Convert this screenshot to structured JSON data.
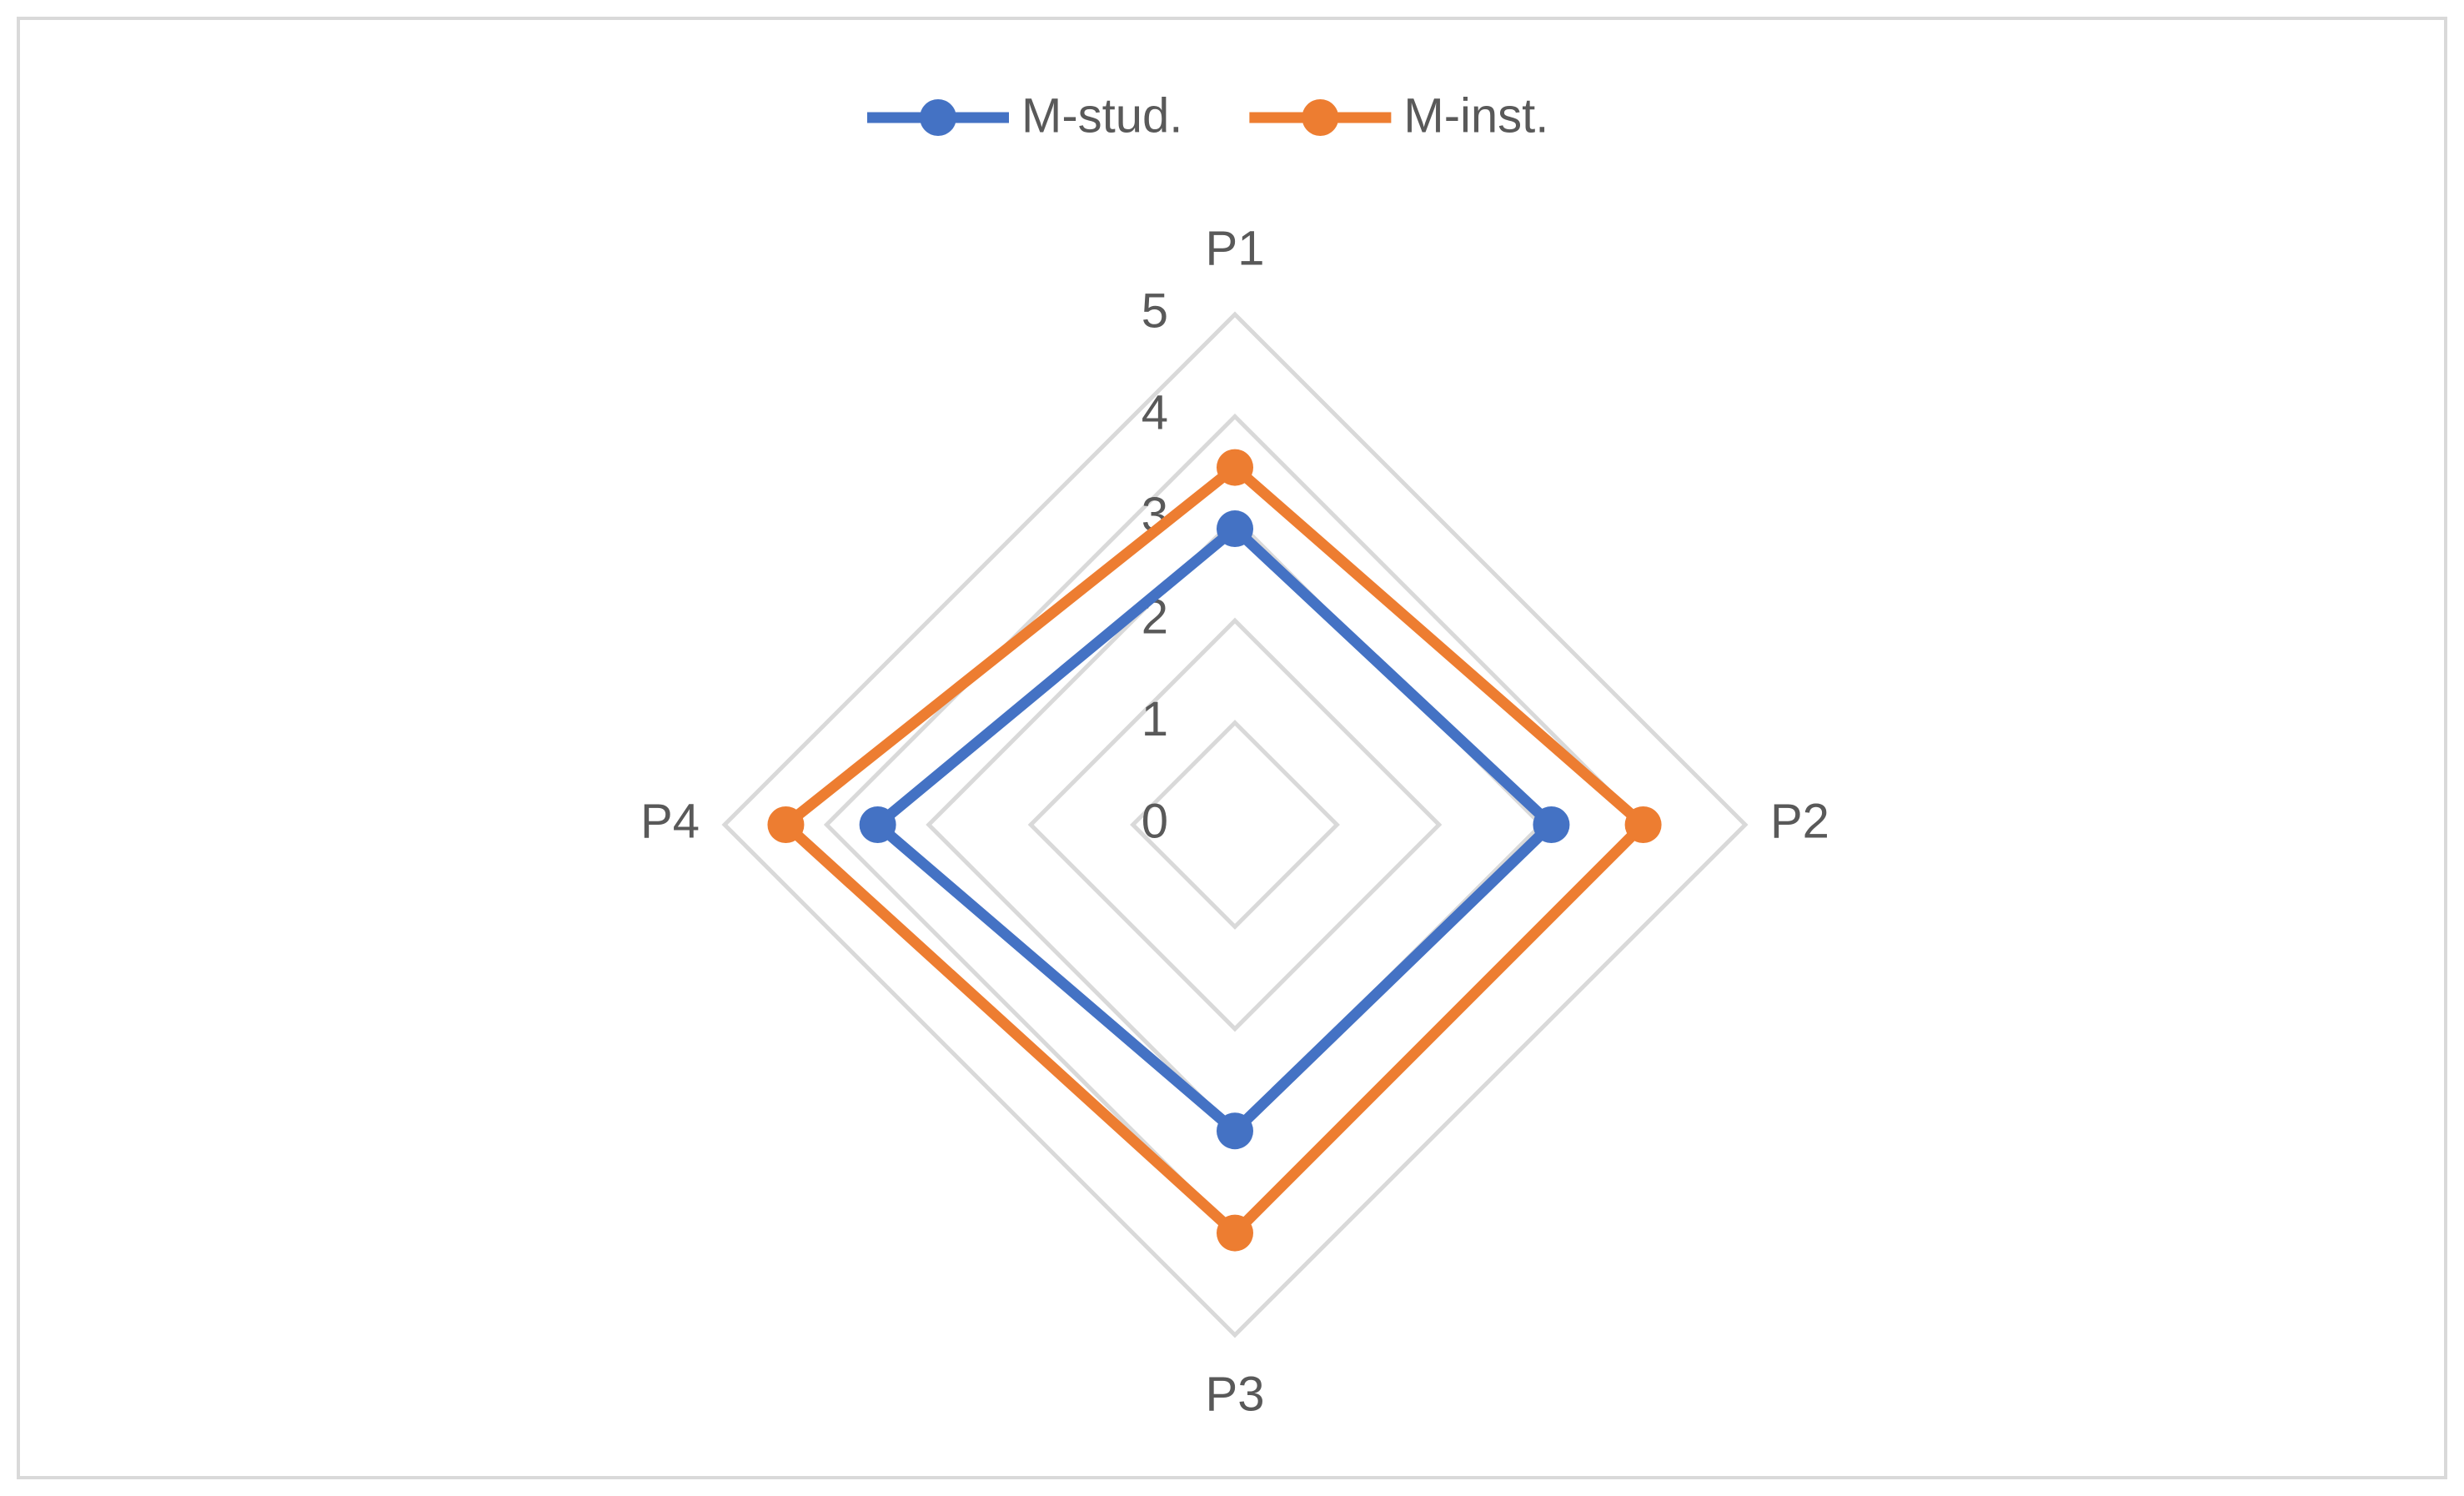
{
  "chart_data": {
    "type": "radar",
    "categories": [
      "P1",
      "P2",
      "P3",
      "P4"
    ],
    "series": [
      {
        "name": "M-stud.",
        "color": "#4472c4",
        "values": [
          2.9,
          3.1,
          3.0,
          3.5
        ]
      },
      {
        "name": "M-inst.",
        "color": "#ed7d31",
        "values": [
          3.5,
          4.0,
          4.0,
          4.4
        ]
      }
    ],
    "rlim": [
      0,
      5
    ],
    "rticks": [
      0,
      1,
      2,
      3,
      4,
      5
    ],
    "grid": true,
    "legend": "top"
  }
}
